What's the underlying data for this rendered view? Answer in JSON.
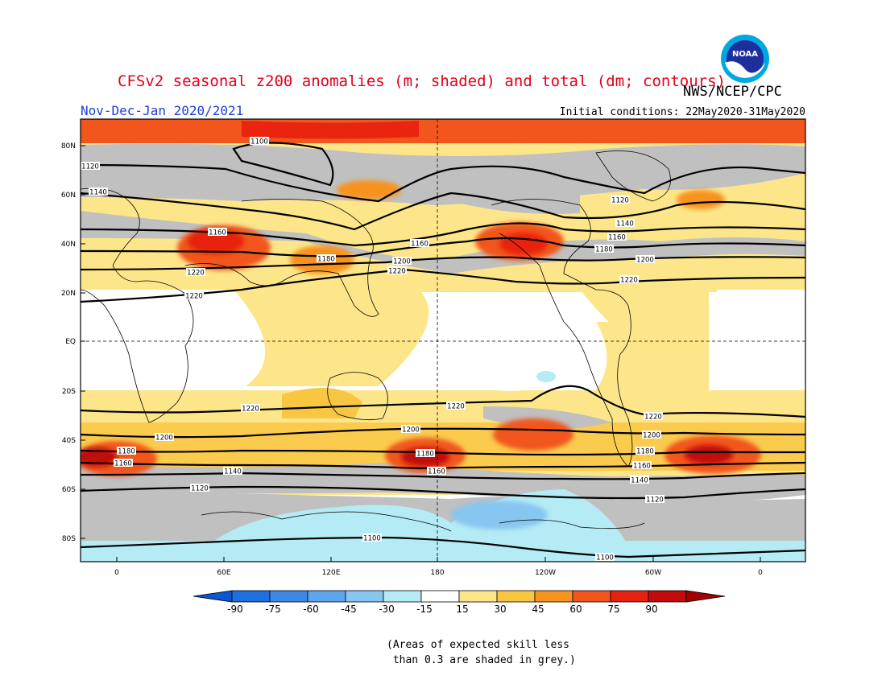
{
  "header": {
    "title": "CFSv2 seasonal z200 anomalies (m; shaded) and total (dm; contours)",
    "agency": "NWS/NCEP/CPC",
    "period": "Nov-Dec-Jan 2020/2021",
    "initial_conditions": "Initial conditions: 22May2020-31May2020",
    "logo_text": "NOAA"
  },
  "map": {
    "lat_labels": [
      "80N",
      "60N",
      "40N",
      "20N",
      "EQ",
      "20S",
      "40S",
      "60S",
      "80S"
    ],
    "lon_labels": [
      "0",
      "60E",
      "120E",
      "180",
      "120W",
      "60W",
      "0"
    ],
    "contours": [
      {
        "value": "1100",
        "labels": [
          "1100",
          "1100",
          "1100"
        ]
      },
      {
        "value": "1120",
        "labels": [
          "1120",
          "1120",
          "1120",
          "1120",
          "1120"
        ]
      },
      {
        "value": "1140",
        "labels": [
          "1140",
          "1140",
          "1140",
          "1140",
          "1140"
        ]
      },
      {
        "value": "1160",
        "labels": [
          "1160",
          "1160",
          "1160",
          "1160",
          "1160",
          "1160"
        ]
      },
      {
        "value": "1180",
        "labels": [
          "1180",
          "1180",
          "1180",
          "1180",
          "1180"
        ]
      },
      {
        "value": "1200",
        "labels": [
          "1200",
          "1200",
          "1200",
          "1200",
          "1200"
        ]
      },
      {
        "value": "1220",
        "labels": [
          "1220",
          "1220",
          "1220",
          "1220",
          "1220",
          "1220",
          "1220"
        ]
      }
    ]
  },
  "colorbar": {
    "labels": [
      "-90",
      "-75",
      "-60",
      "-45",
      "-30",
      "-15",
      "15",
      "30",
      "45",
      "60",
      "75",
      "90"
    ],
    "colors": [
      "#1e6fe0",
      "#3d88e6",
      "#5ea5ee",
      "#86c6f0",
      "#b4ebf4",
      "#ffffff",
      "#fde68a",
      "#f9c642",
      "#f7931e",
      "#f2561d",
      "#e8200f",
      "#c20b0b"
    ],
    "left_end_color": "#0b57d0",
    "right_end_color": "#a30000"
  },
  "note": "(Areas of expected skill less\n than 0.3 are shaded in grey.)"
}
